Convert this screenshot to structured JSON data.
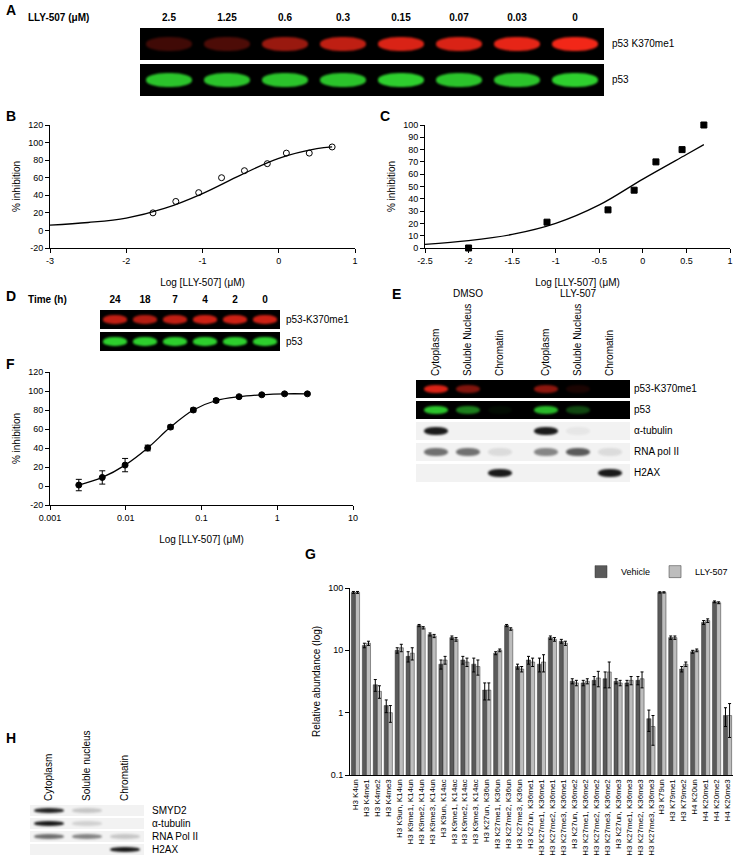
{
  "chart_data": [
    {
      "panel": "B",
      "type": "scatter",
      "x_label": "Log [LLY-507] (μM)",
      "y_label": "% inhibition",
      "xlim": [
        -3,
        1
      ],
      "xticks": [
        -3,
        -2,
        -1,
        0,
        1
      ],
      "ylim": [
        -20,
        120
      ],
      "yticks": [
        -20,
        0,
        20,
        40,
        60,
        80,
        100,
        120
      ],
      "grid": false,
      "series": [
        {
          "type": "scatter",
          "marker": "circle-open",
          "color": "#000000",
          "x": [
            -1.65,
            -1.35,
            -1.05,
            -0.75,
            -0.45,
            -0.15,
            0.1,
            0.4,
            0.7
          ],
          "values": [
            20,
            33,
            43,
            60,
            68,
            76,
            88,
            88,
            95
          ]
        },
        {
          "type": "line",
          "line_style": "solid",
          "color": "#000000",
          "x": [
            -3,
            -2.5,
            -2,
            -1.5,
            -1,
            -0.5,
            0,
            0.5,
            0.7
          ],
          "values": [
            6,
            9,
            14,
            25,
            42,
            63,
            82,
            93,
            95
          ]
        }
      ]
    },
    {
      "panel": "C",
      "type": "scatter",
      "x_label": "Log [LLY-507] (μM)",
      "y_label": "% inhibition",
      "xlim": [
        -2.5,
        1
      ],
      "xticks": [
        -2.5,
        -2,
        -1.5,
        -1,
        -0.5,
        0,
        0.5,
        1
      ],
      "ylim": [
        0,
        100
      ],
      "yticks": [
        0,
        10,
        20,
        30,
        40,
        50,
        60,
        70,
        80,
        90,
        100
      ],
      "grid": false,
      "series": [
        {
          "type": "scatter",
          "marker": "square",
          "color": "#000000",
          "x": [
            -2,
            -1.1,
            -0.4,
            -0.1,
            0.15,
            0.45,
            0.7
          ],
          "values": [
            0,
            21,
            31,
            47,
            70,
            80,
            100
          ]
        },
        {
          "type": "line",
          "line_style": "solid",
          "color": "#000000",
          "x": [
            -2.5,
            -2,
            -1.5,
            -1,
            -0.5,
            0,
            0.5,
            0.7
          ],
          "values": [
            3,
            6,
            11,
            20,
            35,
            56,
            76,
            84
          ]
        }
      ]
    },
    {
      "panel": "F",
      "type": "scatter",
      "log": "x",
      "x_label": "Log [LLY-507] (μM)",
      "y_label": "% inhibition",
      "xlim": [
        0.001,
        10
      ],
      "xticks": [
        0.001,
        0.01,
        0.1,
        1,
        10
      ],
      "ylim": [
        -20,
        120
      ],
      "yticks": [
        -20,
        0,
        20,
        40,
        60,
        80,
        100,
        120
      ],
      "grid": false,
      "series": [
        {
          "type": "line",
          "marker": "circle",
          "line_style": "solid",
          "color": "#000000",
          "x": [
            0.0024,
            0.0049,
            0.0098,
            0.0195,
            0.039,
            0.078,
            0.156,
            0.313,
            0.625,
            1.25,
            2.5
          ],
          "values": [
            1,
            9,
            22,
            40,
            62,
            80,
            90,
            94,
            96,
            97,
            97
          ],
          "errors": [
            6,
            7,
            7,
            3,
            2,
            2,
            2,
            1,
            1,
            1,
            1
          ]
        }
      ]
    },
    {
      "panel": "G",
      "type": "bar",
      "log": "y",
      "y_label": "Relative abundance (log)",
      "ylim": [
        0.1,
        100
      ],
      "yticks": [
        0.1,
        1,
        10,
        100
      ],
      "grid": false,
      "legend": "top right",
      "categories": [
        "H3 K4un",
        "H3 K4me1",
        "H3 K4me2",
        "H3 K4me3",
        "H3 K9un, K14un",
        "H3 K9me1, K14un",
        "H3 K9me2, K14un",
        "H3 K9me3, K14un",
        "H3 K9un, K14ac",
        "H3 K9me1, K14ac",
        "H3 K9me2, K14ac",
        "H3 K9me3, K14ac",
        "H3 K27un, K36un",
        "H3 K27me1, K36un",
        "H3 K27me2, K36un",
        "H3 K27me3, K36un",
        "H3 K27un, K36me1",
        "H3 K27me1, K36me1",
        "H3 K27me2, K36me1",
        "H3 K27me3, K36me1",
        "H3 K27un, K36me2",
        "H3 K27me1, K36me2",
        "H3 K27me2, K36me2",
        "H3 K27me3, K36me2",
        "H3 K27un, K36me3",
        "H3 K27me1, K36me3",
        "H3 K27me2, K36me3",
        "H3 K27me3, K36me3",
        "H3 K79un",
        "H3 K79me1",
        "H3 K79me2",
        "H4 K20un",
        "H4 K20me1",
        "H4 K20me2",
        "H4 K20me3"
      ],
      "series": [
        {
          "name": "Vehicle",
          "color": "#5a5a5a",
          "values": [
            85,
            12,
            2.8,
            1.3,
            10,
            8,
            25,
            18,
            6,
            16,
            7,
            6,
            2.3,
            9,
            25,
            5.5,
            7,
            6,
            16,
            14,
            3.2,
            3,
            3.3,
            3.5,
            3.2,
            3,
            3.3,
            0.8,
            85,
            16,
            5,
            9.5,
            28,
            60,
            0.9
          ],
          "errors": [
            3,
            1,
            0.6,
            0.3,
            1,
            1.5,
            1,
            1,
            1,
            1,
            1,
            1.5,
            0.7,
            0.5,
            1,
            0.5,
            1,
            1.5,
            1,
            1,
            0.3,
            0.3,
            0.5,
            1,
            0.3,
            0.3,
            0.5,
            0.3,
            2,
            1,
            0.5,
            0.5,
            2,
            2,
            0.3
          ]
        },
        {
          "name": "LLY-507",
          "color": "#bdbdbd",
          "values": [
            85,
            13,
            2.2,
            1.0,
            11,
            9,
            23,
            17,
            7,
            15,
            6.5,
            5.5,
            2.3,
            10,
            22,
            5,
            6.5,
            6.5,
            15,
            13,
            3,
            3.2,
            3.6,
            4.5,
            3,
            3.3,
            3.5,
            0.6,
            85,
            16,
            6,
            10,
            30,
            58,
            0.9
          ],
          "errors": [
            3,
            1,
            0.5,
            0.3,
            1.5,
            2,
            1,
            1,
            1,
            1,
            1,
            1.5,
            0.7,
            0.5,
            1,
            0.5,
            1,
            2,
            1,
            1,
            0.3,
            0.3,
            1,
            2,
            0.3,
            0.5,
            1,
            0.3,
            2,
            1,
            0.5,
            0.5,
            2,
            2,
            0.5
          ]
        }
      ]
    }
  ],
  "blots": [
    {
      "panel": "A",
      "header": "LLY-507 (μM)",
      "lanes": [
        "2.5",
        "1.25",
        "0.6",
        "0.3",
        "0.15",
        "0.07",
        "0.03",
        "0"
      ],
      "rows": [
        {
          "label": "p53 K370me1",
          "color": "#ff2a1a",
          "background": "#000000",
          "intensity": [
            0.25,
            0.3,
            0.6,
            0.75,
            0.85,
            0.85,
            0.9,
            0.95
          ]
        },
        {
          "label": "p53",
          "color": "#33e633",
          "background": "#000000",
          "intensity": [
            0.85,
            0.85,
            0.85,
            0.85,
            0.9,
            0.85,
            0.85,
            0.9
          ]
        }
      ]
    },
    {
      "panel": "D",
      "header": "Time (h)",
      "lanes": [
        "24",
        "18",
        "7",
        "4",
        "2",
        "0"
      ],
      "rows": [
        {
          "label": "p53-K370me1",
          "color": "#ff2a1a",
          "background": "#000000",
          "intensity": [
            0.75,
            0.7,
            0.75,
            0.8,
            0.8,
            0.8
          ]
        },
        {
          "label": "p53",
          "color": "#33e633",
          "background": "#000000",
          "intensity": [
            0.9,
            0.9,
            0.9,
            0.9,
            0.9,
            0.9
          ]
        }
      ]
    },
    {
      "panel": "E",
      "groups": [
        "DMSO",
        "LLY-507"
      ],
      "lanes": [
        "Cytoplasm",
        "Soluble Nucleus",
        "Chromatin"
      ],
      "rows": [
        {
          "label": "p53-K370me1",
          "color": "#ff2a1a",
          "background": "#000000",
          "intensity": [
            [
              0.85,
              0.5,
              0
            ],
            [
              0.55,
              0.1,
              0
            ]
          ]
        },
        {
          "label": "p53",
          "color": "#33e633",
          "background": "#000000",
          "intensity": [
            [
              0.85,
              0.55,
              0.05
            ],
            [
              0.8,
              0.3,
              0
            ]
          ]
        },
        {
          "label": "α-tubulin",
          "color": "#1a1a1a",
          "background": "#f2f2f2",
          "intensity": [
            [
              1,
              0,
              0
            ],
            [
              1,
              0.05,
              0
            ]
          ]
        },
        {
          "label": "RNA pol II",
          "color": "#1a1a1a",
          "background": "#f2f2f2",
          "intensity": [
            [
              0.6,
              0.6,
              0.1
            ],
            [
              0.5,
              0.7,
              0.1
            ]
          ]
        },
        {
          "label": "H2AX",
          "color": "#1a1a1a",
          "background": "#f2f2f2",
          "intensity": [
            [
              0,
              0,
              1
            ],
            [
              0,
              0,
              1
            ]
          ]
        }
      ]
    },
    {
      "panel": "H",
      "lanes": [
        "Cytoplasm",
        "Soluble nucleus",
        "Chromatin"
      ],
      "rows": [
        {
          "label": "SMYD2",
          "color": "#1a1a1a",
          "background": "#f2f2f2",
          "intensity": [
            0.95,
            0.2,
            0
          ]
        },
        {
          "label": "α-tubulin",
          "color": "#1a1a1a",
          "background": "#f2f2f2",
          "intensity": [
            1,
            0.15,
            0
          ]
        },
        {
          "label": "RNA Pol II",
          "color": "#1a1a1a",
          "background": "#f2f2f2",
          "intensity": [
            0.6,
            0.5,
            0.2
          ]
        },
        {
          "label": "H2AX",
          "color": "#1a1a1a",
          "background": "#f2f2f2",
          "intensity": [
            0,
            0,
            1
          ]
        }
      ]
    }
  ]
}
